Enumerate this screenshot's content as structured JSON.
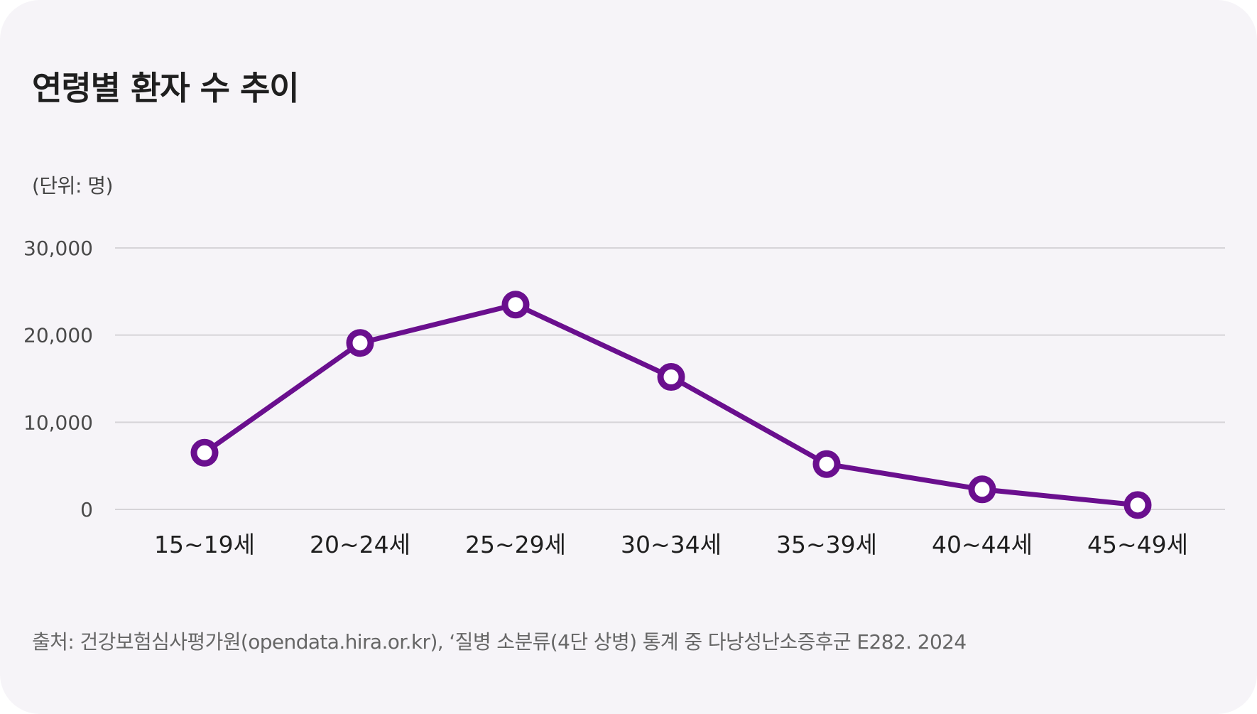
{
  "title": "연령별 환자 수 추이",
  "unit_label": "(단위: 명)",
  "source": "출처: 건강보험심사평가원(opendata.hira.or.kr), ‘질병 소분류(4단 상병) 통계 중 다낭성난소증후군 E282. 2024",
  "colors": {
    "background": "#f6f4f8",
    "line": "#6a0f8e",
    "marker_fill": "#ffffff",
    "grid": "#d6d4d8"
  },
  "chart_data": {
    "type": "line",
    "categories": [
      "15~19세",
      "20~24세",
      "25~29세",
      "30~34세",
      "35~39세",
      "40~44세",
      "45~49세"
    ],
    "series": [
      {
        "values": [
          6500,
          19100,
          23500,
          15200,
          5200,
          2300,
          500
        ]
      }
    ],
    "ylim": [
      0,
      30000
    ],
    "yticks": [
      0,
      10000,
      20000,
      30000
    ],
    "ytick_labels": [
      "0",
      "10,000",
      "20,000",
      "30,000"
    ],
    "grid": true,
    "legend": "none"
  }
}
